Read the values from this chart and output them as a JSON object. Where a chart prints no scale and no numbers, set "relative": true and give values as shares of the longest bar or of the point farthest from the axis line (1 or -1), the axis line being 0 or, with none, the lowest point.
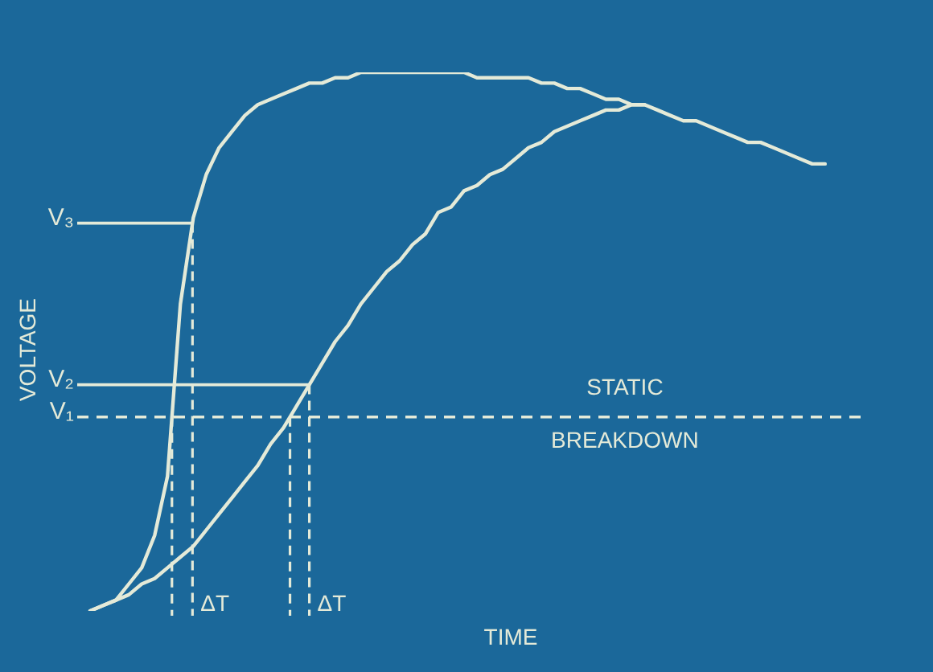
{
  "chart_data": {
    "type": "line",
    "relative": true,
    "xlabel": "TIME",
    "ylabel": "VOLTAGE",
    "grid": false,
    "marker": "none",
    "categories": [
      null,
      null,
      null,
      null,
      null,
      null,
      null,
      null,
      null,
      null,
      null,
      null,
      null,
      null,
      null,
      null,
      null,
      null,
      null,
      null,
      null,
      null,
      null,
      null,
      null,
      null,
      null,
      null,
      null,
      null,
      null,
      null,
      null,
      null,
      null,
      null,
      null,
      null,
      null,
      null,
      null,
      null,
      null,
      null,
      null,
      null,
      null,
      null,
      null,
      null,
      null,
      null,
      null,
      null,
      null,
      null,
      null,
      null,
      null,
      null,
      null,
      null,
      null,
      null
    ],
    "series": [
      {
        "color": "#e4ead8",
        "values": [
          null,
          null,
          0,
          0.01,
          0.02,
          0.05,
          0.08,
          0.14,
          0.25,
          0.57,
          0.73,
          0.81,
          0.86,
          0.89,
          0.92,
          0.94,
          0.95,
          0.96,
          0.97,
          0.98,
          0.98,
          0.99,
          0.99,
          1,
          1,
          1,
          1,
          1,
          1,
          1,
          1,
          1,
          0.99,
          0.99,
          0.99,
          0.99,
          0.99,
          0.98,
          0.98,
          0.97,
          0.97,
          0.96,
          0.95,
          0.95,
          0.94,
          0.94,
          0.93,
          0.92,
          0.91,
          0.91,
          0.9,
          0.89,
          0.88,
          0.87,
          0.87,
          0.86,
          0.85,
          0.84,
          0.83,
          0.83,
          null,
          null,
          null,
          null
        ]
      },
      {
        "color": "#e4ead8",
        "values": [
          null,
          null,
          0,
          0.01,
          0.02,
          0.03,
          0.05,
          0.06,
          0.08,
          0.1,
          0.12,
          0.15,
          0.18,
          0.21,
          0.24,
          0.27,
          0.31,
          0.34,
          0.38,
          0.42,
          0.46,
          0.5,
          0.53,
          0.57,
          0.6,
          0.63,
          0.65,
          0.68,
          0.7,
          0.74,
          0.75,
          0.78,
          0.79,
          0.81,
          0.82,
          0.84,
          0.86,
          0.87,
          0.89,
          0.9,
          0.91,
          0.92,
          0.93,
          0.93,
          0.94,
          0.94,
          null,
          null,
          null,
          null,
          null,
          null,
          null,
          null,
          null,
          null,
          null,
          null,
          null,
          null,
          null,
          null,
          null,
          null
        ]
      }
    ],
    "ref_lines": [
      {
        "axis": "y",
        "value": 0.72,
        "label": "V₃",
        "line_style": "solid",
        "color": "#e4ead8"
      },
      {
        "axis": "y",
        "value": 0.42,
        "label": "V₂",
        "line_style": "solid",
        "color": "#e4ead8"
      },
      {
        "axis": "y",
        "value": 0.36,
        "label": "V₁",
        "line_style": "dashed",
        "color": "#e4ead8"
      }
    ],
    "annotations": [
      "ΔT",
      "ΔT",
      "STATIC",
      "BREAKDOWN"
    ]
  }
}
